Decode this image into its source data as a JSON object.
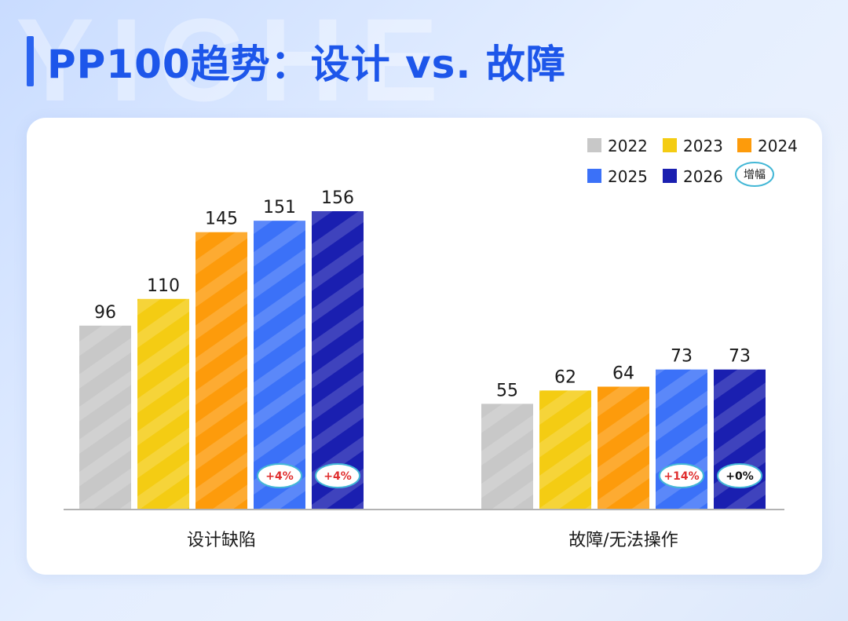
{
  "page": {
    "title": "PP100趋势：设计 vs. 故障",
    "watermark": "YICHE"
  },
  "chart_data": {
    "type": "bar",
    "title": "PP100趋势：设计 vs. 故障",
    "categories": [
      "设计缺陷",
      "故障/无法操作"
    ],
    "series": [
      {
        "name": "2022",
        "color": "#c8c8c8",
        "values": [
          96,
          55
        ]
      },
      {
        "name": "2023",
        "color": "#f4cc13",
        "values": [
          110,
          62
        ]
      },
      {
        "name": "2024",
        "color": "#fd9b0b",
        "values": [
          145,
          64
        ]
      },
      {
        "name": "2025",
        "color": "#3b71f8",
        "values": [
          151,
          73
        ]
      },
      {
        "name": "2026",
        "color": "#1a1fb0",
        "values": [
          156,
          73
        ]
      }
    ],
    "growth_badges": [
      {
        "series": "2025",
        "category": "设计缺陷",
        "text": "+4%",
        "color": "#e02f2f"
      },
      {
        "series": "2026",
        "category": "设计缺陷",
        "text": "+4%",
        "color": "#e02f2f"
      },
      {
        "series": "2025",
        "category": "故障/无法操作",
        "text": "+14%",
        "color": "#e02f2f"
      },
      {
        "series": "2026",
        "category": "故障/无法操作",
        "text": "+0%",
        "color": "#111111"
      }
    ],
    "legend_badge": "增幅",
    "ylim": [
      0,
      160
    ],
    "legend_position": "top-right",
    "xlabel": "",
    "ylabel": ""
  }
}
